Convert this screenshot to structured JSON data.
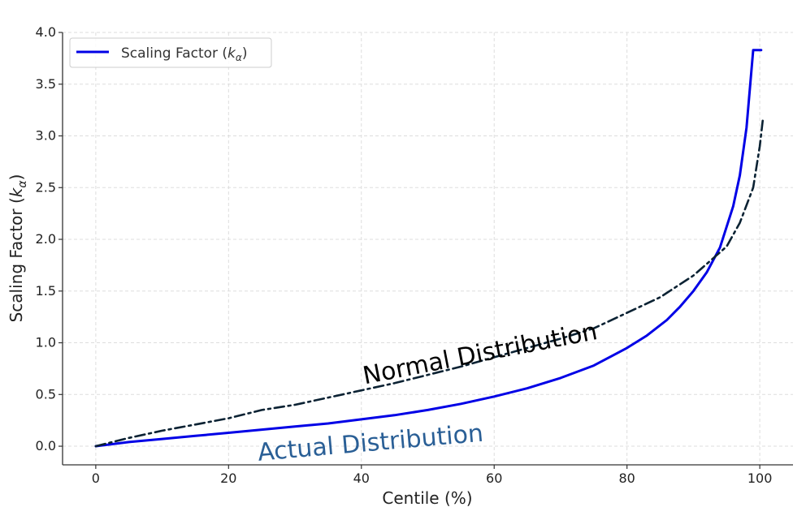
{
  "chart_data": {
    "type": "line",
    "xlabel": "Centile (%)",
    "ylabel_prefix": "Scaling Factor (",
    "ylabel_symbol": "k",
    "ylabel_sub": "α",
    "ylabel_suffix": ")",
    "xlim": [
      -5,
      105
    ],
    "ylim": [
      -0.18,
      4.0
    ],
    "xticks": [
      0,
      20,
      40,
      60,
      80,
      100
    ],
    "yticks": [
      0.0,
      0.5,
      1.0,
      1.5,
      2.0,
      2.5,
      3.0,
      3.5,
      4.0
    ],
    "ytick_labels": [
      "0.0",
      "0.5",
      "1.0",
      "1.5",
      "2.0",
      "2.5",
      "3.0",
      "3.5",
      "4.0"
    ],
    "grid": true,
    "legend": {
      "position": "top-left",
      "label_prefix": "Scaling Factor (",
      "label_symbol": "k",
      "label_sub": "α",
      "label_suffix": ")"
    },
    "series": [
      {
        "name": "Scaling Factor (kα)",
        "style": "solid",
        "color": "#0000e6",
        "points": [
          [
            0,
            0.0
          ],
          [
            5,
            0.04
          ],
          [
            10,
            0.07
          ],
          [
            15,
            0.1
          ],
          [
            20,
            0.13
          ],
          [
            25,
            0.16
          ],
          [
            30,
            0.19
          ],
          [
            35,
            0.22
          ],
          [
            40,
            0.26
          ],
          [
            45,
            0.3
          ],
          [
            50,
            0.35
          ],
          [
            55,
            0.41
          ],
          [
            60,
            0.48
          ],
          [
            65,
            0.56
          ],
          [
            70,
            0.66
          ],
          [
            75,
            0.78
          ],
          [
            80,
            0.95
          ],
          [
            83,
            1.07
          ],
          [
            86,
            1.22
          ],
          [
            88,
            1.35
          ],
          [
            90,
            1.5
          ],
          [
            92,
            1.68
          ],
          [
            94,
            1.92
          ],
          [
            96,
            2.32
          ],
          [
            97,
            2.62
          ],
          [
            98,
            3.08
          ],
          [
            99,
            3.83
          ],
          [
            100.2,
            3.83
          ]
        ]
      },
      {
        "style": "dashdot",
        "color": "#0b2233",
        "points": [
          [
            0,
            0.0
          ],
          [
            5,
            0.08
          ],
          [
            10,
            0.15
          ],
          [
            15,
            0.21
          ],
          [
            20,
            0.27
          ],
          [
            25,
            0.35
          ],
          [
            30,
            0.4
          ],
          [
            35,
            0.47
          ],
          [
            40,
            0.54
          ],
          [
            45,
            0.61
          ],
          [
            50,
            0.69
          ],
          [
            55,
            0.77
          ],
          [
            60,
            0.86
          ],
          [
            65,
            0.95
          ],
          [
            70,
            1.04
          ],
          [
            75,
            1.14
          ],
          [
            80,
            1.29
          ],
          [
            85,
            1.44
          ],
          [
            90,
            1.65
          ],
          [
            95,
            1.93
          ],
          [
            97,
            2.16
          ],
          [
            99,
            2.5
          ],
          [
            100,
            2.9
          ],
          [
            100.5,
            3.18
          ]
        ]
      }
    ],
    "annotations": [
      {
        "text": "Normal Distribution",
        "x": 40.5,
        "y": 0.6,
        "angle": -11,
        "color": "#000000"
      },
      {
        "text": "Actual Distribution",
        "x": 24.5,
        "y": -0.14,
        "angle": -5,
        "color": "#2a5f96"
      }
    ]
  }
}
